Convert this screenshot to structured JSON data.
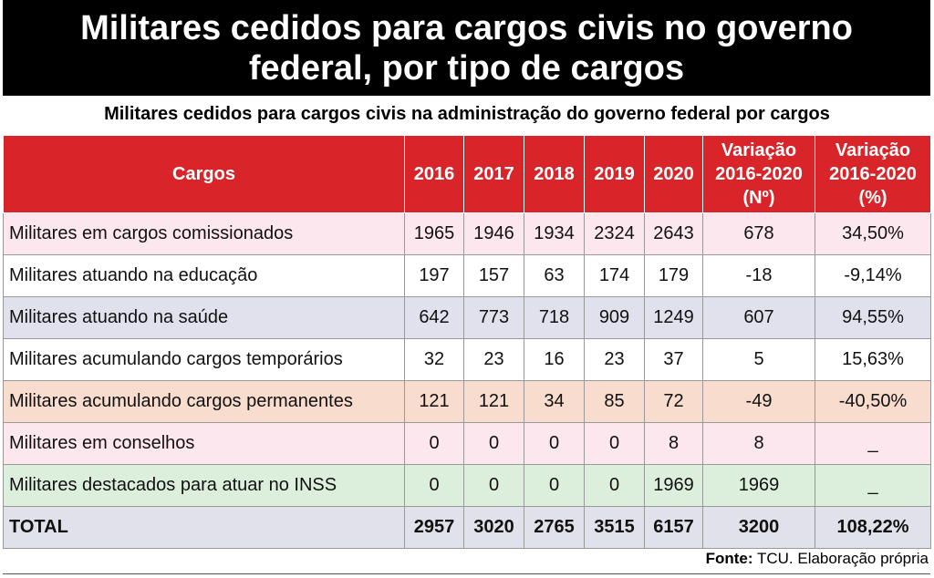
{
  "header": {
    "title": "Militares cedidos para cargos civis no governo federal, por tipo de cargos",
    "subtitle": "Militares cedidos para cargos civis na administração do governo federal por cargos"
  },
  "table": {
    "headers": [
      "Cargos",
      "2016",
      "2017",
      "2018",
      "2019",
      "2020",
      "Variação 2016-2020 (Nº)",
      "Variação 2016-2020 (%)"
    ],
    "rows": [
      [
        "Militares em cargos comissionados",
        "1965",
        "1946",
        "1934",
        "2324",
        "2643",
        "678",
        "34,50%"
      ],
      [
        "Militares atuando na educação",
        "197",
        "157",
        "63",
        "174",
        "179",
        "-18",
        "-9,14%"
      ],
      [
        "Militares atuando na saúde",
        "642",
        "773",
        "718",
        "909",
        "1249",
        "607",
        "94,55%"
      ],
      [
        "Militares acumulando cargos temporários",
        "32",
        "23",
        "16",
        "23",
        "37",
        "5",
        "15,63%"
      ],
      [
        "Militares acumulando cargos permanentes",
        "121",
        "121",
        "34",
        "85",
        "72",
        "-49",
        "-40,50%"
      ],
      [
        "Militares em conselhos",
        "0",
        "0",
        "0",
        "0",
        "8",
        "8",
        "_"
      ],
      [
        "Militares destacados para atuar no INSS",
        "0",
        "0",
        "0",
        "0",
        "1969",
        "1969",
        "_"
      ],
      [
        "TOTAL",
        "2957",
        "3020",
        "2765",
        "3515",
        "6157",
        "3200",
        "108,22%"
      ]
    ]
  },
  "footer": {
    "label": "Fonte:",
    "text": "TCU. Elaboração própria"
  }
}
